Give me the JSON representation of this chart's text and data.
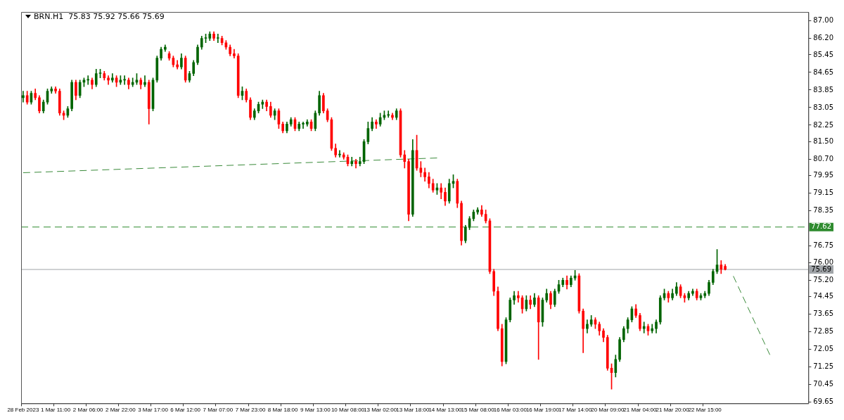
{
  "chart_data": {
    "type": "candlestick",
    "title": "BRN.H1  75.83 75.92 75.66 75.69",
    "categories": [
      "28 Feb 2023",
      null,
      null,
      null,
      null,
      null,
      null,
      null,
      "1 Mar 11:00",
      null,
      null,
      null,
      null,
      null,
      null,
      null,
      "2 Mar 06:00",
      null,
      null,
      null,
      null,
      null,
      null,
      null,
      "2 Mar 22:00",
      null,
      null,
      null,
      null,
      null,
      null,
      null,
      "3 Mar 17:00",
      null,
      null,
      null,
      null,
      null,
      null,
      null,
      "6 Mar 12:00",
      null,
      null,
      null,
      null,
      null,
      null,
      null,
      "7 Mar 07:00",
      null,
      null,
      null,
      null,
      null,
      null,
      null,
      "7 Mar 23:00",
      null,
      null,
      null,
      null,
      null,
      null,
      null,
      "8 Mar 18:00",
      null,
      null,
      null,
      null,
      null,
      null,
      null,
      "9 Mar 13:00",
      null,
      null,
      null,
      null,
      null,
      null,
      null,
      "10 Mar 08:00",
      null,
      null,
      null,
      null,
      null,
      null,
      null,
      "13 Mar 02:00",
      null,
      null,
      null,
      null,
      null,
      null,
      null,
      "13 Mar 18:00",
      null,
      null,
      null,
      null,
      null,
      null,
      null,
      "14 Mar 13:00",
      null,
      null,
      null,
      null,
      null,
      null,
      null,
      "15 Mar 08:00",
      null,
      null,
      null,
      null,
      null,
      null,
      null,
      "16 Mar 03:00",
      null,
      null,
      null,
      null,
      null,
      null,
      null,
      "16 Mar 19:00",
      null,
      null,
      null,
      null,
      null,
      null,
      null,
      "17 Mar 14:00",
      null,
      null,
      null,
      null,
      null,
      null,
      null,
      "20 Mar 09:00",
      null,
      null,
      null,
      null,
      null,
      null,
      null,
      "21 Mar 04:00",
      null,
      null,
      null,
      null,
      null,
      null,
      null,
      "21 Mar 20:00",
      null,
      null,
      null,
      null,
      null,
      null,
      null,
      "22 Mar 15:00",
      null,
      null,
      null,
      null,
      null,
      null,
      null,
      null,
      null,
      null,
      null,
      null,
      null,
      null,
      null,
      null,
      null,
      null,
      null,
      null,
      null,
      null,
      null,
      null,
      null
    ],
    "ohlc": [
      [
        83.5,
        83.8,
        83.3,
        83.6
      ],
      [
        83.6,
        83.8,
        83.2,
        83.3
      ],
      [
        83.3,
        83.8,
        83.2,
        83.7
      ],
      [
        83.7,
        83.9,
        83.4,
        83.5
      ],
      [
        83.5,
        83.6,
        82.8,
        82.9
      ],
      [
        82.9,
        83.4,
        82.8,
        83.3
      ],
      [
        83.3,
        83.9,
        83.2,
        83.8
      ],
      [
        83.8,
        84.0,
        83.7,
        83.9
      ],
      [
        83.9,
        84.0,
        83.7,
        83.8
      ],
      [
        83.8,
        83.9,
        82.7,
        82.8
      ],
      [
        82.8,
        82.9,
        82.5,
        82.7
      ],
      [
        82.7,
        83.1,
        82.6,
        83.0
      ],
      [
        83.0,
        84.3,
        82.9,
        84.2
      ],
      [
        84.2,
        84.3,
        83.4,
        83.6
      ],
      [
        83.6,
        84.3,
        83.5,
        84.2
      ],
      [
        84.2,
        84.4,
        84.0,
        84.3
      ],
      [
        84.3,
        84.5,
        84.1,
        84.3
      ],
      [
        84.3,
        84.4,
        83.9,
        84.1
      ],
      [
        84.1,
        84.8,
        84.0,
        84.6
      ],
      [
        84.6,
        84.8,
        84.4,
        84.6
      ],
      [
        84.6,
        84.7,
        84.3,
        84.4
      ],
      [
        84.4,
        84.5,
        84.1,
        84.3
      ],
      [
        84.3,
        84.6,
        84.2,
        84.4
      ],
      [
        84.4,
        84.5,
        84.0,
        84.2
      ],
      [
        84.2,
        84.5,
        84.1,
        84.3
      ],
      [
        84.3,
        84.5,
        84.1,
        84.3
      ],
      [
        84.3,
        84.4,
        83.9,
        84.1
      ],
      [
        84.1,
        84.4,
        84.0,
        84.2
      ],
      [
        84.2,
        84.6,
        84.1,
        84.3
      ],
      [
        84.3,
        84.4,
        83.9,
        84.1
      ],
      [
        84.1,
        84.5,
        84.0,
        84.2
      ],
      [
        84.2,
        84.3,
        82.3,
        83.0
      ],
      [
        83.0,
        84.4,
        82.9,
        84.3
      ],
      [
        84.3,
        85.4,
        84.2,
        85.3
      ],
      [
        85.3,
        85.8,
        85.2,
        85.7
      ],
      [
        85.7,
        85.9,
        85.6,
        85.8
      ],
      [
        85.5,
        85.6,
        85.2,
        85.3
      ],
      [
        85.3,
        85.4,
        84.9,
        85.0
      ],
      [
        85.0,
        85.2,
        84.8,
        84.9
      ],
      [
        84.9,
        85.5,
        84.8,
        85.3
      ],
      [
        85.3,
        85.4,
        84.2,
        84.3
      ],
      [
        84.3,
        84.7,
        84.2,
        84.6
      ],
      [
        84.6,
        85.2,
        84.5,
        85.1
      ],
      [
        85.1,
        85.9,
        85.0,
        85.8
      ],
      [
        85.8,
        86.3,
        85.7,
        86.2
      ],
      [
        86.2,
        86.4,
        86.0,
        86.2
      ],
      [
        86.2,
        86.5,
        86.1,
        86.4
      ],
      [
        86.4,
        86.5,
        86.1,
        86.2
      ],
      [
        86.2,
        86.4,
        86.0,
        86.2
      ],
      [
        86.2,
        86.3,
        85.9,
        86.0
      ],
      [
        86.0,
        86.1,
        85.7,
        85.8
      ],
      [
        85.8,
        85.9,
        85.4,
        85.5
      ],
      [
        85.5,
        85.7,
        85.3,
        85.4
      ],
      [
        85.4,
        85.5,
        83.5,
        83.6
      ],
      [
        83.6,
        84.0,
        83.4,
        83.8
      ],
      [
        83.8,
        83.9,
        83.3,
        83.4
      ],
      [
        83.4,
        83.5,
        82.5,
        82.6
      ],
      [
        82.6,
        83.0,
        82.5,
        82.9
      ],
      [
        82.9,
        83.3,
        82.8,
        83.2
      ],
      [
        83.2,
        83.4,
        83.0,
        83.3
      ],
      [
        83.3,
        83.4,
        82.9,
        83.1
      ],
      [
        83.1,
        83.3,
        82.6,
        82.7
      ],
      [
        82.7,
        83.0,
        82.5,
        82.9
      ],
      [
        82.9,
        83.0,
        82.1,
        82.3
      ],
      [
        82.3,
        82.4,
        81.9,
        82.0
      ],
      [
        82.0,
        82.4,
        81.9,
        82.3
      ],
      [
        82.3,
        82.6,
        82.2,
        82.5
      ],
      [
        82.5,
        82.6,
        82.0,
        82.1
      ],
      [
        82.1,
        82.4,
        82.0,
        82.3
      ],
      [
        82.3,
        82.4,
        82.1,
        82.3
      ],
      [
        82.3,
        82.5,
        82.2,
        82.4
      ],
      [
        82.4,
        82.5,
        82.0,
        82.1
      ],
      [
        82.1,
        82.9,
        82.0,
        82.8
      ],
      [
        82.8,
        83.8,
        82.7,
        83.6
      ],
      [
        83.6,
        83.7,
        82.8,
        82.9
      ],
      [
        82.9,
        83.0,
        82.4,
        82.5
      ],
      [
        82.5,
        82.6,
        81.1,
        81.2
      ],
      [
        81.2,
        81.4,
        80.8,
        80.9
      ],
      [
        80.9,
        81.1,
        80.8,
        80.9
      ],
      [
        80.9,
        81.0,
        80.7,
        80.8
      ],
      [
        80.8,
        80.9,
        80.4,
        80.5
      ],
      [
        80.5,
        80.8,
        80.4,
        80.6
      ],
      [
        80.6,
        80.7,
        80.3,
        80.5
      ],
      [
        80.5,
        80.8,
        80.4,
        80.6
      ],
      [
        80.6,
        81.6,
        80.5,
        81.5
      ],
      [
        81.5,
        82.4,
        81.4,
        82.1
      ],
      [
        82.1,
        82.6,
        82.0,
        82.4
      ],
      [
        82.4,
        82.5,
        82.1,
        82.3
      ],
      [
        82.3,
        82.8,
        82.2,
        82.6
      ],
      [
        82.6,
        82.9,
        82.5,
        82.7
      ],
      [
        82.7,
        82.9,
        82.6,
        82.7
      ],
      [
        82.7,
        82.8,
        82.5,
        82.6
      ],
      [
        82.6,
        83.0,
        82.5,
        82.9
      ],
      [
        82.9,
        83.0,
        80.8,
        80.9
      ],
      [
        80.9,
        81.1,
        80.3,
        80.6
      ],
      [
        80.6,
        80.7,
        77.9,
        78.2
      ],
      [
        78.2,
        81.6,
        78.1,
        81.1
      ],
      [
        81.1,
        81.8,
        80.2,
        80.3
      ],
      [
        80.3,
        80.6,
        79.9,
        80.1
      ],
      [
        80.1,
        80.3,
        79.7,
        79.9
      ],
      [
        79.9,
        80.1,
        79.4,
        79.6
      ],
      [
        79.6,
        79.8,
        79.2,
        79.3
      ],
      [
        79.3,
        79.6,
        79.1,
        79.4
      ],
      [
        79.4,
        79.6,
        78.9,
        79.2
      ],
      [
        79.2,
        79.4,
        78.6,
        78.8
      ],
      [
        78.8,
        79.8,
        78.7,
        79.6
      ],
      [
        79.6,
        80.0,
        79.4,
        79.7
      ],
      [
        79.7,
        79.8,
        78.5,
        78.7
      ],
      [
        78.7,
        78.8,
        76.8,
        77.0
      ],
      [
        77.0,
        77.7,
        76.9,
        77.6
      ],
      [
        77.6,
        78.1,
        77.5,
        78.0
      ],
      [
        78.0,
        78.4,
        77.9,
        78.3
      ],
      [
        78.3,
        78.5,
        78.2,
        78.4
      ],
      [
        78.4,
        78.6,
        78.1,
        78.2
      ],
      [
        78.2,
        78.4,
        77.8,
        77.9
      ],
      [
        77.9,
        78.0,
        75.5,
        75.6
      ],
      [
        75.6,
        75.7,
        74.5,
        74.7
      ],
      [
        74.7,
        74.9,
        72.9,
        73.0
      ],
      [
        73.0,
        73.2,
        71.3,
        71.5
      ],
      [
        71.5,
        73.5,
        71.4,
        73.4
      ],
      [
        73.4,
        74.4,
        73.3,
        74.3
      ],
      [
        74.3,
        74.7,
        74.1,
        74.5
      ],
      [
        74.5,
        74.7,
        74.2,
        74.4
      ],
      [
        74.4,
        74.5,
        73.7,
        73.9
      ],
      [
        73.9,
        74.5,
        73.8,
        74.3
      ],
      [
        74.3,
        74.5,
        73.9,
        74.1
      ],
      [
        74.1,
        74.6,
        74.0,
        74.4
      ],
      [
        74.4,
        74.5,
        71.6,
        73.3
      ],
      [
        73.3,
        74.4,
        73.1,
        74.3
      ],
      [
        74.3,
        74.8,
        74.2,
        74.6
      ],
      [
        74.6,
        74.7,
        73.9,
        74.1
      ],
      [
        74.1,
        74.8,
        74.0,
        74.7
      ],
      [
        74.7,
        75.2,
        74.6,
        75.0
      ],
      [
        75.0,
        75.3,
        74.9,
        75.2
      ],
      [
        75.2,
        75.4,
        74.8,
        75.0
      ],
      [
        75.0,
        75.4,
        74.9,
        75.3
      ],
      [
        75.3,
        75.65,
        75.2,
        75.4
      ],
      [
        75.4,
        75.5,
        73.7,
        73.8
      ],
      [
        73.8,
        73.9,
        71.9,
        73.0
      ],
      [
        73.0,
        73.4,
        72.8,
        73.2
      ],
      [
        73.2,
        73.6,
        73.1,
        73.4
      ],
      [
        73.4,
        73.5,
        73.0,
        73.2
      ],
      [
        73.2,
        73.3,
        72.7,
        72.9
      ],
      [
        72.9,
        73.0,
        72.4,
        72.6
      ],
      [
        72.6,
        72.7,
        71.1,
        71.2
      ],
      [
        71.2,
        71.4,
        70.25,
        71.0
      ],
      [
        71.0,
        71.8,
        70.8,
        71.6
      ],
      [
        71.6,
        72.6,
        71.5,
        72.5
      ],
      [
        72.5,
        73.1,
        72.4,
        73.0
      ],
      [
        73.0,
        73.5,
        72.8,
        73.4
      ],
      [
        73.4,
        74.0,
        73.3,
        73.9
      ],
      [
        73.9,
        74.1,
        73.5,
        73.6
      ],
      [
        73.6,
        73.7,
        72.9,
        73.0
      ],
      [
        73.0,
        73.3,
        72.8,
        73.1
      ],
      [
        73.1,
        73.2,
        72.7,
        72.9
      ],
      [
        72.9,
        73.2,
        72.8,
        73.0
      ],
      [
        73.0,
        73.4,
        72.8,
        73.3
      ],
      [
        73.3,
        74.5,
        73.2,
        74.4
      ],
      [
        74.4,
        74.8,
        74.3,
        74.6
      ],
      [
        74.6,
        74.7,
        74.2,
        74.4
      ],
      [
        74.4,
        74.8,
        74.3,
        74.6
      ],
      [
        74.6,
        75.1,
        74.5,
        74.9
      ],
      [
        74.9,
        75.0,
        74.4,
        74.5
      ],
      [
        74.5,
        74.6,
        74.2,
        74.4
      ],
      [
        74.4,
        74.7,
        74.3,
        74.6
      ],
      [
        74.6,
        74.8,
        74.5,
        74.7
      ],
      [
        74.7,
        74.8,
        74.3,
        74.4
      ],
      [
        74.4,
        74.6,
        74.3,
        74.5
      ],
      [
        74.5,
        74.7,
        74.4,
        74.6
      ],
      [
        74.6,
        75.2,
        74.5,
        75.1
      ],
      [
        75.1,
        75.7,
        75.0,
        75.6
      ],
      [
        75.6,
        76.6,
        75.5,
        75.9
      ],
      [
        75.9,
        76.1,
        75.5,
        75.7
      ],
      [
        75.83,
        75.92,
        75.66,
        75.69
      ],
      null,
      null,
      null,
      null,
      null,
      null,
      null,
      null,
      null,
      null,
      null,
      null,
      null,
      null,
      null,
      null,
      null,
      null,
      null,
      null
    ],
    "colors": [
      "#006400",
      "#ff0000",
      "#006400",
      "#ff0000",
      "#ff0000",
      "#006400",
      "#006400",
      "#006400",
      "#ff0000",
      "#ff0000",
      "#ff0000",
      "#006400",
      "#006400",
      "#ff0000",
      "#006400",
      "#006400",
      "#006400",
      "#ff0000",
      "#006400",
      "#006400",
      "#ff0000",
      "#ff0000",
      "#006400",
      "#ff0000",
      "#006400",
      "#006400",
      "#ff0000",
      "#006400",
      "#006400",
      "#ff0000",
      "#006400",
      "#ff0000",
      "#006400",
      "#006400",
      "#006400",
      "#006400",
      "#ff0000",
      "#ff0000",
      "#ff0000",
      "#006400",
      "#ff0000",
      "#006400",
      "#006400",
      "#006400",
      "#006400",
      "#006400",
      "#006400",
      "#ff0000",
      "#006400",
      "#ff0000",
      "#ff0000",
      "#ff0000",
      "#ff0000",
      "#ff0000",
      "#006400",
      "#ff0000",
      "#ff0000",
      "#006400",
      "#006400",
      "#006400",
      "#ff0000",
      "#ff0000",
      "#006400",
      "#ff0000",
      "#ff0000",
      "#006400",
      "#006400",
      "#ff0000",
      "#006400",
      "#006400",
      "#006400",
      "#ff0000",
      "#006400",
      "#006400",
      "#ff0000",
      "#ff0000",
      "#ff0000",
      "#ff0000",
      "#006400",
      "#ff0000",
      "#ff0000",
      "#006400",
      "#ff0000",
      "#006400",
      "#006400",
      "#006400",
      "#006400",
      "#ff0000",
      "#006400",
      "#006400",
      "#006400",
      "#ff0000",
      "#006400",
      "#ff0000",
      "#ff0000",
      "#ff0000",
      "#006400",
      "#ff0000",
      "#ff0000",
      "#ff0000",
      "#ff0000",
      "#ff0000",
      "#006400",
      "#ff0000",
      "#ff0000",
      "#006400",
      "#006400",
      "#ff0000",
      "#ff0000",
      "#006400",
      "#006400",
      "#006400",
      "#006400",
      "#ff0000",
      "#ff0000",
      "#ff0000",
      "#ff0000",
      "#ff0000",
      "#ff0000",
      "#006400",
      "#006400",
      "#006400",
      "#ff0000",
      "#ff0000",
      "#006400",
      "#ff0000",
      "#006400",
      "#ff0000",
      "#006400",
      "#006400",
      "#ff0000",
      "#006400",
      "#006400",
      "#006400",
      "#ff0000",
      "#006400",
      "#006400",
      "#ff0000",
      "#ff0000",
      "#006400",
      "#006400",
      "#ff0000",
      "#ff0000",
      "#ff0000",
      "#ff0000",
      "#ff0000",
      "#006400",
      "#006400",
      "#006400",
      "#006400",
      "#006400",
      "#ff0000",
      "#ff0000",
      "#006400",
      "#ff0000",
      "#006400",
      "#006400",
      "#006400",
      "#006400",
      "#ff0000",
      "#006400",
      "#006400",
      "#ff0000",
      "#ff0000",
      "#006400",
      "#006400",
      "#ff0000",
      "#006400",
      "#006400",
      "#006400",
      "#006400",
      "#006400",
      "#ff0000",
      "#ff0000",
      null,
      null,
      null,
      null,
      null,
      null,
      null,
      null,
      null,
      null,
      null,
      null,
      null,
      null,
      null,
      null,
      null,
      null,
      null,
      null
    ],
    "series": [
      {
        "type": "line",
        "color": "#3a8a3a",
        "line_style": "dashed",
        "values": [
          80.09,
          null,
          null,
          null,
          null,
          null,
          null,
          null,
          null,
          null,
          null,
          null,
          null,
          null,
          null,
          null,
          null,
          null,
          null,
          null,
          null,
          null,
          null,
          null,
          null,
          null,
          null,
          null,
          null,
          null,
          null,
          null,
          null,
          null,
          null,
          null,
          null,
          null,
          null,
          null,
          null,
          null,
          null,
          null,
          null,
          null,
          null,
          null,
          null,
          null,
          null,
          null,
          null,
          null,
          null,
          null,
          null,
          null,
          null,
          null,
          null,
          null,
          null,
          null,
          null,
          null,
          null,
          null,
          null,
          null,
          null,
          null,
          null,
          null,
          null,
          null,
          null,
          null,
          null,
          null,
          null,
          null,
          null,
          null,
          null,
          null,
          null,
          null,
          null,
          null,
          null,
          null,
          null,
          null,
          null,
          null,
          null,
          null,
          null,
          null,
          null,
          null,
          80.76,
          null,
          null,
          null,
          null,
          null,
          null,
          null,
          null,
          null,
          null,
          null,
          null,
          null,
          null,
          null,
          null,
          null,
          null,
          null,
          null,
          null,
          null,
          null,
          null,
          null,
          null,
          null,
          null,
          null,
          null,
          null,
          null,
          null,
          null,
          null,
          null,
          null,
          null,
          null,
          null,
          null,
          null,
          null,
          null,
          null,
          null,
          null,
          null,
          null,
          null,
          null,
          null,
          null,
          null,
          null,
          null,
          null,
          null,
          null,
          null,
          null,
          null,
          null,
          null,
          null,
          null,
          null,
          null,
          null,
          null,
          null,
          null,
          null,
          null,
          null,
          null,
          null,
          null,
          null,
          null,
          null,
          null,
          null,
          null,
          null,
          null,
          null,
          null,
          null,
          null,
          null
        ]
      },
      {
        "type": "line",
        "color": "#3a8a3a",
        "line_style": "dashed",
        "values": [
          null,
          null,
          null,
          null,
          null,
          null,
          null,
          null,
          null,
          null,
          null,
          null,
          null,
          null,
          null,
          null,
          null,
          null,
          null,
          null,
          null,
          null,
          null,
          null,
          null,
          null,
          null,
          null,
          null,
          null,
          null,
          null,
          null,
          null,
          null,
          null,
          null,
          null,
          null,
          null,
          null,
          null,
          null,
          null,
          null,
          null,
          null,
          null,
          null,
          null,
          null,
          null,
          null,
          null,
          null,
          null,
          null,
          null,
          null,
          null,
          null,
          null,
          null,
          null,
          null,
          null,
          null,
          null,
          null,
          null,
          null,
          null,
          null,
          null,
          null,
          null,
          null,
          null,
          null,
          null,
          null,
          null,
          null,
          null,
          null,
          null,
          null,
          null,
          null,
          null,
          null,
          null,
          null,
          null,
          null,
          null,
          null,
          null,
          null,
          null,
          null,
          null,
          null,
          null,
          null,
          null,
          null,
          null,
          null,
          null,
          null,
          null,
          null,
          null,
          null,
          null,
          null,
          null,
          null,
          null,
          null,
          null,
          null,
          null,
          null,
          null,
          null,
          null,
          null,
          null,
          null,
          null,
          null,
          null,
          null,
          null,
          null,
          null,
          null,
          null,
          null,
          null,
          null,
          null,
          null,
          null,
          null,
          null,
          null,
          null,
          null,
          null,
          null,
          null,
          null,
          null,
          null,
          null,
          null,
          null,
          null,
          null,
          null,
          null,
          null,
          null,
          null,
          null,
          null,
          null,
          null,
          null,
          null,
          null,
          null,
          75.39,
          null,
          null,
          null,
          null,
          null,
          null,
          null,
          null,
          71.81,
          null,
          null,
          null,
          null,
          null,
          null,
          null,
          null,
          null
        ]
      }
    ],
    "ylim": [
      69.6,
      87.4
    ],
    "yticks": [
      {
        "value": 69.65,
        "label": "69.65"
      },
      {
        "value": 70.45,
        "label": "70.45"
      },
      {
        "value": 71.25,
        "label": "71.25"
      },
      {
        "value": 72.05,
        "label": "72.05"
      },
      {
        "value": 72.85,
        "label": "72.85"
      },
      {
        "value": 73.65,
        "label": "73.65"
      },
      {
        "value": 74.45,
        "label": "74.45"
      },
      {
        "value": 75.2,
        "label": "75.20"
      },
      {
        "value": 76,
        "label": "76.00"
      },
      {
        "value": 76.75,
        "label": "76.75"
      },
      {
        "value": 78.35,
        "label": "78.35"
      },
      {
        "value": 79.15,
        "label": "79.15"
      },
      {
        "value": 79.95,
        "label": "79.95"
      },
      {
        "value": 80.7,
        "label": "80.70"
      },
      {
        "value": 81.5,
        "label": "81.50"
      },
      {
        "value": 82.25,
        "label": "82.25"
      },
      {
        "value": 83.05,
        "label": "83.05"
      },
      {
        "value": 83.85,
        "label": "83.85"
      },
      {
        "value": 84.65,
        "label": "84.65"
      },
      {
        "value": 85.45,
        "label": "85.45"
      },
      {
        "value": 86.2,
        "label": "86.20"
      },
      {
        "value": 87,
        "label": "87.00"
      }
    ],
    "ref_lines": [
      {
        "axis": "y",
        "value": 77.62,
        "label": "77.62",
        "color": "#2e8b2e",
        "line_style": "dashed"
      },
      {
        "axis": "y",
        "value": 75.69,
        "label": "75.69",
        "color": "#a0a4a8",
        "line_style": "solid"
      }
    ],
    "grid": false,
    "legend": false
  }
}
